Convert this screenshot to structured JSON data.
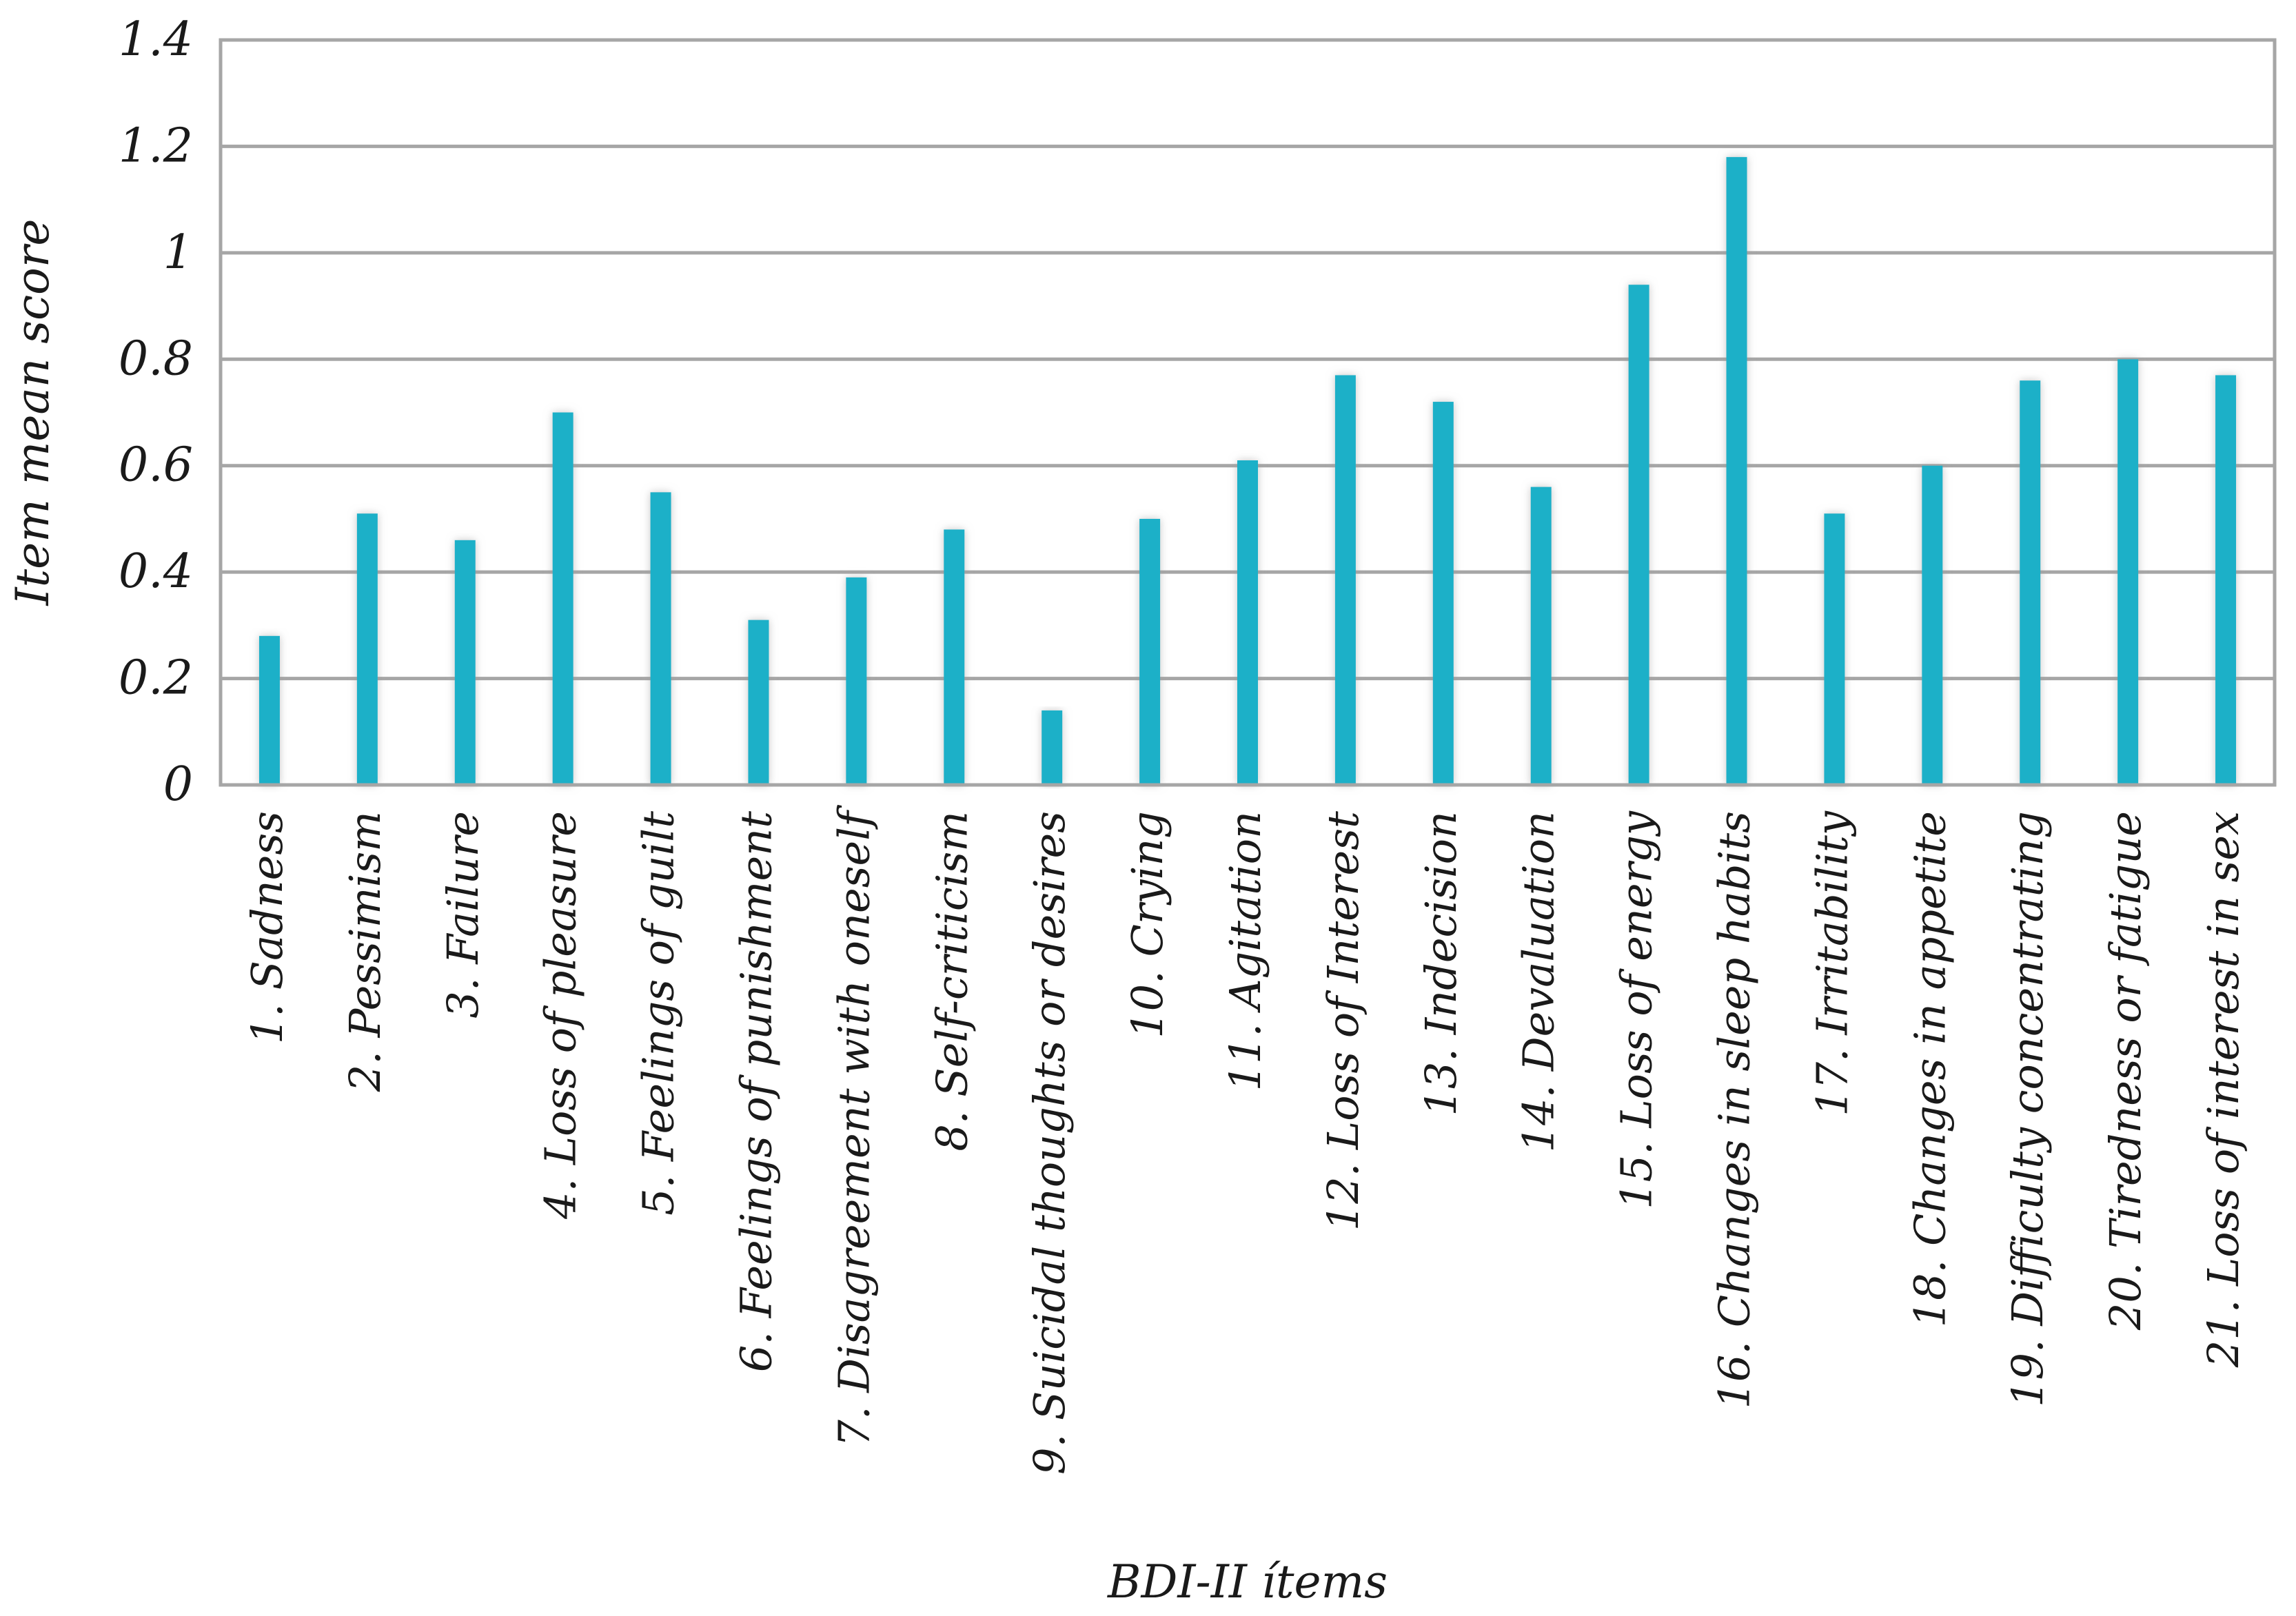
{
  "chart_data": {
    "type": "bar",
    "title": "",
    "xlabel": "BDI-II ítems",
    "ylabel": "Item mean score",
    "ylim": [
      0,
      1.4
    ],
    "yticks": [
      "0",
      "0.2",
      "0.4",
      "0.6",
      "0.8",
      "1",
      "1.2",
      "1.4"
    ],
    "grid": true,
    "legend": "none",
    "bar_color": "#1ab0c8",
    "categories": [
      "1. Sadness",
      "2. Pessimism",
      "3. Failure",
      "4. Loss of pleasure",
      "5. Feelings of guilt",
      "6. Feelings of punishment",
      "7. Disagreement with oneself",
      "8. Self-criticism",
      "9. Suicidal thoughts or desires",
      "10. Crying",
      "11. Agitation",
      "12. Loss of Interest",
      "13. Indecision",
      "14. Devaluation",
      "15. Loss of energy",
      "16. Changes in sleep habits",
      "17. Irritability",
      "18. Changes in appetite",
      "19. Difficulty concentrating",
      "20. Tiredness or fatigue",
      "21. Loss of interest in sex"
    ],
    "values": [
      0.28,
      0.51,
      0.46,
      0.7,
      0.55,
      0.31,
      0.39,
      0.48,
      0.14,
      0.5,
      0.61,
      0.77,
      0.72,
      0.56,
      0.94,
      1.18,
      0.51,
      0.6,
      0.76,
      0.8,
      0.77
    ]
  }
}
